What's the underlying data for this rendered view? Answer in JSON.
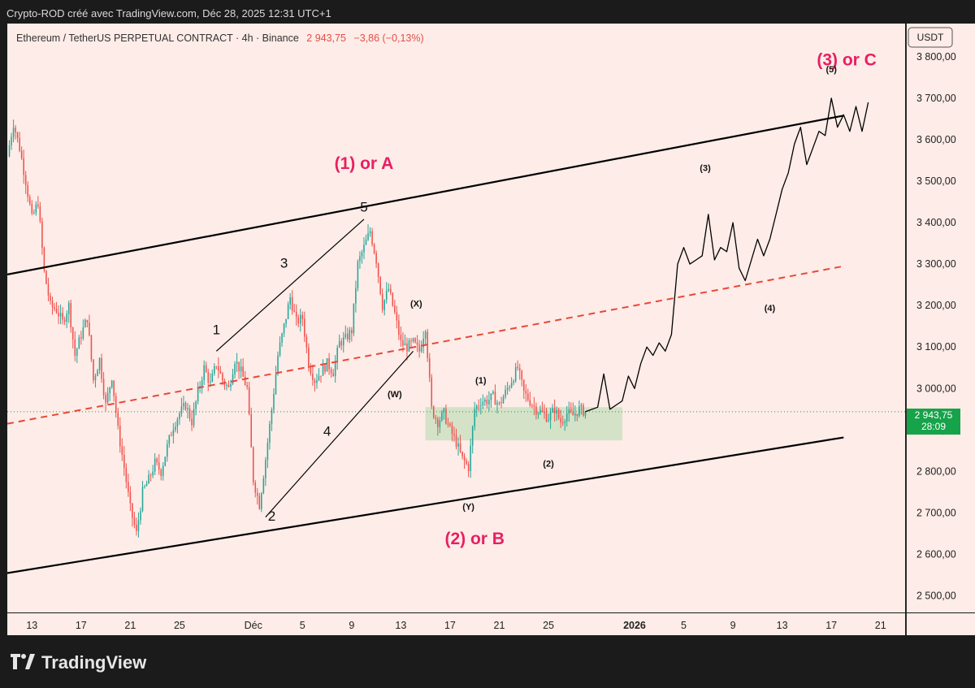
{
  "header": {
    "attribution": "Crypto-ROD créé avec TradingView.com, Déc 28, 2025 12:31 UTC+1"
  },
  "ticker": {
    "symbol": "Ethereum / TetherUS PERPETUAL CONTRACT · 4h · Binance",
    "price": "2 943,75",
    "change": "−3,86 (−0,13%)"
  },
  "axis": {
    "currency": "USDT",
    "current_price": "2 943,75",
    "countdown": "28:09"
  },
  "footer": {
    "brand": "TradingView"
  },
  "colors": {
    "background": "#fdece7",
    "up_candle": "#26a69a",
    "down_candle": "#ef5350",
    "wave_label": "#e91e63",
    "midline": "#e8473b",
    "zone": "#cde1c1",
    "price_tag": "#16a34a"
  },
  "chart_data": {
    "type": "candlestick",
    "timeframe": "4h",
    "y_axis": {
      "ticks": [
        2500,
        2600,
        2700,
        2800,
        2900,
        3000,
        3100,
        3200,
        3300,
        3400,
        3500,
        3600,
        3700,
        3800
      ],
      "tick_labels": [
        "2 500,00",
        "2 600,00",
        "2 700,00",
        "2 800,00",
        "2 900,00",
        "3 000,00",
        "3 100,00",
        "3 200,00",
        "3 300,00",
        "3 400,00",
        "3 500,00",
        "3 600,00",
        "3 700,00",
        "3 800,00"
      ],
      "range": [
        2460,
        3880
      ]
    },
    "x_axis": {
      "range": [
        "2025-11-11",
        "2026-01-23"
      ],
      "ticks": [
        {
          "date": "2025-11-13",
          "label": "13"
        },
        {
          "date": "2025-11-17",
          "label": "17"
        },
        {
          "date": "2025-11-21",
          "label": "21"
        },
        {
          "date": "2025-11-25",
          "label": "25"
        },
        {
          "date": "2025-12-01",
          "label": "Déc"
        },
        {
          "date": "2025-12-05",
          "label": "5"
        },
        {
          "date": "2025-12-09",
          "label": "9"
        },
        {
          "date": "2025-12-13",
          "label": "13"
        },
        {
          "date": "2025-12-17",
          "label": "17"
        },
        {
          "date": "2025-12-21",
          "label": "21"
        },
        {
          "date": "2025-12-25",
          "label": "25"
        },
        {
          "date": "2026-01-01",
          "label": "2026"
        },
        {
          "date": "2026-01-05",
          "label": "5"
        },
        {
          "date": "2026-01-09",
          "label": "9"
        },
        {
          "date": "2026-01-13",
          "label": "13"
        },
        {
          "date": "2026-01-17",
          "label": "17"
        },
        {
          "date": "2026-01-21",
          "label": "21"
        }
      ]
    },
    "price_path": [
      [
        "2025-11-11",
        3560
      ],
      [
        "2025-11-11T12",
        3640
      ],
      [
        "2025-11-12",
        3580
      ],
      [
        "2025-11-12T12",
        3500
      ],
      [
        "2025-11-13",
        3410
      ],
      [
        "2025-11-13T12",
        3450
      ],
      [
        "2025-11-14",
        3280
      ],
      [
        "2025-11-14T12",
        3200
      ],
      [
        "2025-11-15",
        3190
      ],
      [
        "2025-11-15T12",
        3160
      ],
      [
        "2025-11-16",
        3200
      ],
      [
        "2025-11-16T12",
        3080
      ],
      [
        "2025-11-17",
        3130
      ],
      [
        "2025-11-17T12",
        3170
      ],
      [
        "2025-11-18",
        3020
      ],
      [
        "2025-11-18T12",
        3070
      ],
      [
        "2025-11-19",
        2960
      ],
      [
        "2025-11-19T12",
        3030
      ],
      [
        "2025-11-20",
        2900
      ],
      [
        "2025-11-20T12",
        2810
      ],
      [
        "2025-11-21",
        2710
      ],
      [
        "2025-11-21T12",
        2650
      ],
      [
        "2025-11-22",
        2750
      ],
      [
        "2025-11-22T12",
        2780
      ],
      [
        "2025-11-23",
        2820
      ],
      [
        "2025-11-23T12",
        2800
      ],
      [
        "2025-11-24",
        2860
      ],
      [
        "2025-11-24T12",
        2910
      ],
      [
        "2025-11-25",
        2940
      ],
      [
        "2025-11-25T12",
        2960
      ],
      [
        "2025-11-26",
        2920
      ],
      [
        "2025-11-26T12",
        2990
      ],
      [
        "2025-11-27",
        3050
      ],
      [
        "2025-11-27T12",
        3010
      ],
      [
        "2025-11-28",
        3060
      ],
      [
        "2025-11-28T12",
        3020
      ],
      [
        "2025-11-29",
        3000
      ],
      [
        "2025-11-29T12",
        3070
      ],
      [
        "2025-11-30",
        3040
      ],
      [
        "2025-11-30T12",
        3000
      ],
      [
        "2025-12-01",
        2780
      ],
      [
        "2025-12-01T12",
        2720
      ],
      [
        "2025-12-02",
        2830
      ],
      [
        "2025-12-02T12",
        2950
      ],
      [
        "2025-12-03",
        3080
      ],
      [
        "2025-12-03T12",
        3150
      ],
      [
        "2025-12-04",
        3220
      ],
      [
        "2025-12-04T12",
        3160
      ],
      [
        "2025-12-05",
        3170
      ],
      [
        "2025-12-05T12",
        3060
      ],
      [
        "2025-12-06",
        3020
      ],
      [
        "2025-12-06T12",
        3040
      ],
      [
        "2025-12-07",
        3060
      ],
      [
        "2025-12-07T12",
        3040
      ],
      [
        "2025-12-08",
        3110
      ],
      [
        "2025-12-08T12",
        3120
      ],
      [
        "2025-12-09",
        3140
      ],
      [
        "2025-12-09T12",
        3300
      ],
      [
        "2025-12-10",
        3340
      ],
      [
        "2025-12-10T12",
        3380
      ],
      [
        "2025-12-11",
        3310
      ],
      [
        "2025-12-11T12",
        3200
      ],
      [
        "2025-12-12",
        3240
      ],
      [
        "2025-12-12T12",
        3180
      ],
      [
        "2025-12-13",
        3110
      ],
      [
        "2025-12-13T12",
        3100
      ],
      [
        "2025-12-14",
        3110
      ],
      [
        "2025-12-14T12",
        3090
      ],
      [
        "2025-12-15",
        3150
      ],
      [
        "2025-12-15T12",
        2950
      ],
      [
        "2025-12-16",
        2920
      ],
      [
        "2025-12-16T12",
        2940
      ],
      [
        "2025-12-17",
        2900
      ],
      [
        "2025-12-17T12",
        2870
      ],
      [
        "2025-12-18",
        2830
      ],
      [
        "2025-12-18T12",
        2810
      ],
      [
        "2025-12-19",
        2950
      ],
      [
        "2025-12-19T12",
        2970
      ],
      [
        "2025-12-20",
        2970
      ],
      [
        "2025-12-20T12",
        2980
      ],
      [
        "2025-12-21",
        2960
      ],
      [
        "2025-12-21T12",
        2990
      ],
      [
        "2025-12-22",
        3020
      ],
      [
        "2025-12-22T12",
        3050
      ],
      [
        "2025-12-23",
        2990
      ],
      [
        "2025-12-23T12",
        2970
      ],
      [
        "2025-12-24",
        2950
      ],
      [
        "2025-12-24T12",
        2940
      ],
      [
        "2025-12-25",
        2930
      ],
      [
        "2025-12-25T12",
        2950
      ],
      [
        "2025-12-26",
        2920
      ],
      [
        "2025-12-26T12",
        2940
      ],
      [
        "2025-12-27",
        2935
      ],
      [
        "2025-12-27T12",
        2950
      ],
      [
        "2025-12-28",
        2944
      ]
    ],
    "channel": {
      "upper": [
        [
          "2025-11-11",
          3275
        ],
        [
          "2026-01-18",
          3658
        ]
      ],
      "lower": [
        [
          "2025-11-11",
          2555
        ],
        [
          "2026-01-18",
          2882
        ]
      ],
      "middle_dashed": [
        [
          "2025-11-11",
          2915
        ],
        [
          "2026-01-18",
          3295
        ]
      ]
    },
    "impulse_wedge": {
      "upper": [
        [
          "2025-11-28",
          3090
        ],
        [
          "2025-12-10",
          3408
        ]
      ],
      "lower": [
        [
          "2025-12-02",
          2690
        ],
        [
          "2025-12-14",
          3090
        ]
      ]
    },
    "consolidation_zone": {
      "from": "2025-12-15",
      "to": "2025-12-31",
      "low": 2875,
      "high": 2955
    },
    "projection": [
      [
        "2025-12-28",
        2944
      ],
      [
        "2025-12-29",
        2955
      ],
      [
        "2025-12-29T12",
        3035
      ],
      [
        "2025-12-30",
        2950
      ],
      [
        "2025-12-31",
        2970
      ],
      [
        "2025-12-31T12",
        3030
      ],
      [
        "2026-01-01",
        3000
      ],
      [
        "2026-01-01T12",
        3060
      ],
      [
        "2026-01-02",
        3100
      ],
      [
        "2026-01-02T12",
        3080
      ],
      [
        "2026-01-03",
        3110
      ],
      [
        "2026-01-03T12",
        3090
      ],
      [
        "2026-01-04",
        3130
      ],
      [
        "2026-01-04T12",
        3300
      ],
      [
        "2026-01-05",
        3340
      ],
      [
        "2026-01-05T12",
        3300
      ],
      [
        "2026-01-06",
        3310
      ],
      [
        "2026-01-06T12",
        3320
      ],
      [
        "2026-01-07",
        3420
      ],
      [
        "2026-01-07T12",
        3310
      ],
      [
        "2026-01-08",
        3340
      ],
      [
        "2026-01-08T12",
        3330
      ],
      [
        "2026-01-09",
        3400
      ],
      [
        "2026-01-09T12",
        3290
      ],
      [
        "2026-01-10",
        3260
      ],
      [
        "2026-01-10T12",
        3310
      ],
      [
        "2026-01-11",
        3360
      ],
      [
        "2026-01-11T12",
        3320
      ],
      [
        "2026-01-12",
        3360
      ],
      [
        "2026-01-12T12",
        3420
      ],
      [
        "2026-01-13",
        3480
      ],
      [
        "2026-01-13T12",
        3520
      ],
      [
        "2026-01-14",
        3590
      ],
      [
        "2026-01-14T12",
        3630
      ],
      [
        "2026-01-15",
        3540
      ],
      [
        "2026-01-15T12",
        3580
      ],
      [
        "2026-01-16",
        3620
      ],
      [
        "2026-01-16T12",
        3610
      ],
      [
        "2026-01-17",
        3700
      ],
      [
        "2026-01-17T12",
        3630
      ],
      [
        "2026-01-18",
        3660
      ],
      [
        "2026-01-18T12",
        3620
      ],
      [
        "2026-01-19",
        3680
      ],
      [
        "2026-01-19T12",
        3620
      ],
      [
        "2026-01-20",
        3690
      ]
    ],
    "wave_labels": [
      {
        "text": "(1) or A",
        "date": "2025-12-10",
        "price": 3540,
        "style": "major"
      },
      {
        "text": "(2) or B",
        "date": "2025-12-19",
        "price": 2635,
        "style": "major"
      },
      {
        "text": "(3) or C",
        "date": "2026-01-18T06",
        "price": 3790,
        "style": "major"
      },
      {
        "text": "1",
        "date": "2025-11-28",
        "price": 3140,
        "style": "minor"
      },
      {
        "text": "2",
        "date": "2025-12-02T12",
        "price": 2690,
        "style": "minor"
      },
      {
        "text": "3",
        "date": "2025-12-03T12",
        "price": 3300,
        "style": "minor"
      },
      {
        "text": "4",
        "date": "2025-12-07",
        "price": 2895,
        "style": "minor"
      },
      {
        "text": "5",
        "date": "2025-12-10",
        "price": 3435,
        "style": "minor"
      },
      {
        "text": "(X)",
        "date": "2025-12-14T06",
        "price": 3203,
        "style": "small"
      },
      {
        "text": "(W)",
        "date": "2025-12-12T12",
        "price": 2985,
        "style": "small"
      },
      {
        "text": "(Y)",
        "date": "2025-12-18T12",
        "price": 2713,
        "style": "small"
      },
      {
        "text": "(1)",
        "date": "2025-12-19T12",
        "price": 3018,
        "style": "small"
      },
      {
        "text": "(2)",
        "date": "2025-12-25",
        "price": 2817,
        "style": "small"
      },
      {
        "text": "(3)",
        "date": "2026-01-06T18",
        "price": 3530,
        "style": "small"
      },
      {
        "text": "(4)",
        "date": "2026-01-12",
        "price": 3192,
        "style": "small"
      },
      {
        "text": "(5)",
        "date": "2026-01-17",
        "price": 3768,
        "style": "small"
      }
    ]
  }
}
